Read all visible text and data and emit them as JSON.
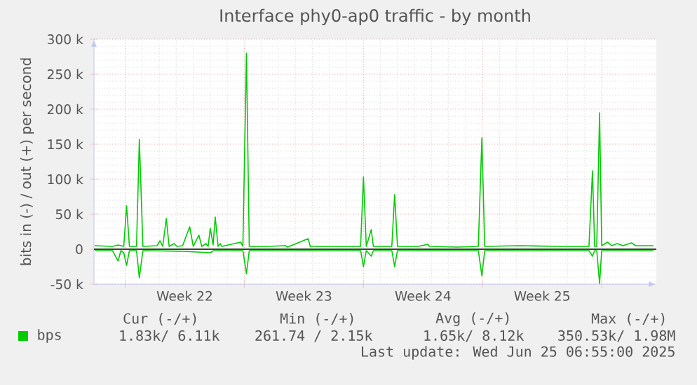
{
  "chart_data": {
    "type": "line",
    "title": "Interface phy0-ap0 traffic - by month",
    "ylabel": "bits in (-) / out (+) per second",
    "xlim": [
      "2025-05-24T04:00",
      "2025-06-26T05:00"
    ],
    "ylim": [
      -50000,
      300000
    ],
    "xticks": [
      {
        "value": "2025-05-26T00:00",
        "label": null
      },
      {
        "value": "2025-06-02T00:00",
        "label": null
      },
      {
        "value": "2025-06-09T00:00",
        "label": null
      },
      {
        "value": "2025-06-16T00:00",
        "label": null
      },
      {
        "value": "2025-06-23T00:00",
        "label": null
      },
      {
        "value": "2025-05-29T12:00",
        "label": "Week 22"
      },
      {
        "value": "2025-06-05T12:00",
        "label": "Week 23"
      },
      {
        "value": "2025-06-12T12:00",
        "label": "Week 24"
      },
      {
        "value": "2025-06-19T12:00",
        "label": "Week 25"
      }
    ],
    "yticks": [
      {
        "value": -50000,
        "label": "-50 k"
      },
      {
        "value": 0,
        "label": "0"
      },
      {
        "value": 50000,
        "label": "50 k"
      },
      {
        "value": 100000,
        "label": "100 k"
      },
      {
        "value": 150000,
        "label": "150 k"
      },
      {
        "value": 200000,
        "label": "200 k"
      },
      {
        "value": 250000,
        "label": "250 k"
      },
      {
        "value": 300000,
        "label": "300 k"
      }
    ],
    "grid": true,
    "legend": "bottom",
    "marker": "none",
    "line_style": "solid",
    "series": [
      {
        "name": "bps",
        "color": "#00cc00",
        "x": [
          "2025-05-24T05:00",
          "2025-05-25T06:00",
          "2025-05-25T14:00",
          "2025-05-25T22:00",
          "2025-05-26T02:00",
          "2025-05-26T06:00",
          "2025-05-26T16:00",
          "2025-05-26T20:00",
          "2025-05-27T01:00",
          "2025-05-27T21:00",
          "2025-05-28T01:00",
          "2025-05-28T05:00",
          "2025-05-28T10:00",
          "2025-05-28T14:00",
          "2025-05-28T21:00",
          "2025-05-29T01:00",
          "2025-05-29T09:00",
          "2025-05-29T19:00",
          "2025-05-30T00:00",
          "2025-05-30T08:00",
          "2025-05-30T12:00",
          "2025-05-30T18:00",
          "2025-05-30T21:00",
          "2025-05-31T00:00",
          "2025-05-31T04:00",
          "2025-05-31T07:00",
          "2025-05-31T11:00",
          "2025-05-31T14:00",
          "2025-05-31T16:00",
          "2025-06-01T19:00",
          "2025-06-01T22:00",
          "2025-06-02T03:00",
          "2025-06-02T07:00",
          "2025-06-03T08:00",
          "2025-06-04T10:00",
          "2025-06-04T13:00",
          "2025-06-05T18:00",
          "2025-06-05T21:00",
          "2025-06-07T11:00",
          "2025-06-08T20:00",
          "2025-06-09T00:00",
          "2025-06-09T04:00",
          "2025-06-09T11:00",
          "2025-06-09T14:00",
          "2025-06-10T16:00",
          "2025-06-10T20:00",
          "2025-06-11T00:00",
          "2025-06-12T05:00",
          "2025-06-12T19:00",
          "2025-06-12T21:00",
          "2025-06-14T12:00",
          "2025-06-15T18:00",
          "2025-06-15T23:00",
          "2025-06-16T03:00",
          "2025-06-18T04:00",
          "2025-06-20T15:00",
          "2025-06-22T06:00",
          "2025-06-22T11:00",
          "2025-06-22T14:00",
          "2025-06-22T17:00",
          "2025-06-22T21:00",
          "2025-06-23T00:00",
          "2025-06-23T08:00",
          "2025-06-23T14:00",
          "2025-06-23T22:00",
          "2025-06-24T06:00",
          "2025-06-24T18:00",
          "2025-06-25T00:00",
          "2025-06-26T01:00"
        ],
        "values": [
          5000,
          4000,
          6000,
          4000,
          62000,
          4000,
          4000,
          157000,
          4000,
          5000,
          12000,
          4000,
          44000,
          4000,
          8000,
          4000,
          5000,
          32000,
          4000,
          20000,
          4000,
          8000,
          4000,
          30000,
          6000,
          46000,
          4000,
          8000,
          4000,
          10000,
          4000,
          280000,
          4000,
          4000,
          5000,
          3000,
          15000,
          4000,
          4000,
          4000,
          103000,
          4000,
          28000,
          4000,
          4000,
          78000,
          4000,
          4000,
          7000,
          4000,
          3000,
          4000,
          159000,
          4000,
          5000,
          4000,
          4000,
          112000,
          4000,
          4000,
          195000,
          5000,
          10000,
          5000,
          8000,
          5000,
          9000,
          5000,
          5000
        ]
      },
      {
        "color": "#00cc00",
        "x": [
          "2025-05-24T05:00",
          "2025-05-25T06:00",
          "2025-05-25T14:00",
          "2025-05-25T18:00",
          "2025-05-25T22:00",
          "2025-05-26T02:00",
          "2025-05-26T06:00",
          "2025-05-26T16:00",
          "2025-05-26T20:00",
          "2025-05-27T01:00",
          "2025-05-29T09:00",
          "2025-05-31T00:00",
          "2025-05-31T05:00",
          "2025-06-01T22:00",
          "2025-06-02T03:00",
          "2025-06-02T07:00",
          "2025-06-08T20:00",
          "2025-06-09T00:00",
          "2025-06-09T04:00",
          "2025-06-09T11:00",
          "2025-06-09T14:00",
          "2025-06-10T16:00",
          "2025-06-10T20:00",
          "2025-06-11T00:00",
          "2025-06-15T18:00",
          "2025-06-15T23:00",
          "2025-06-16T03:00",
          "2025-06-22T06:00",
          "2025-06-22T11:00",
          "2025-06-22T14:00",
          "2025-06-22T17:00",
          "2025-06-22T21:00",
          "2025-06-23T00:00",
          "2025-06-26T01:00"
        ],
        "values": [
          -2000,
          -2000,
          -17000,
          -2000,
          -5000,
          -23000,
          -2000,
          -2000,
          -41000,
          -2000,
          -3000,
          -5000,
          -2000,
          -2000,
          -35000,
          -2000,
          -2000,
          -25000,
          -2000,
          -10000,
          -2000,
          -2000,
          -25000,
          -2000,
          -2000,
          -38000,
          -2000,
          -2000,
          -10000,
          -2000,
          -2000,
          -49000,
          -2000,
          -2000
        ]
      }
    ],
    "ref_lines": [
      {
        "axis": "y",
        "value": 0,
        "color": "#000000"
      }
    ],
    "annotations": [
      "Cur (-/+)",
      "Min (-/+)",
      "Avg (-/+)",
      "Max (-/+)",
      "1.83k/ 6.11k",
      "261.74 / 2.15k",
      "1.65k/ 8.12k",
      "350.53k/ 1.98M",
      "Last update: Wed Jun 25 06:55:00 2025"
    ]
  }
}
